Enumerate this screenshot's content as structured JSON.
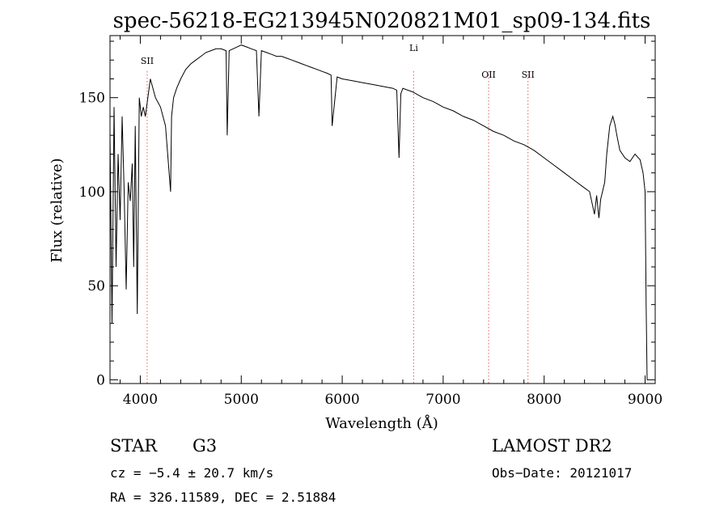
{
  "chart_data": {
    "type": "line",
    "title": "spec-56218-EG213945N020821M01_sp09-134.fits",
    "xlabel": "Wavelength (Å)",
    "ylabel": "Flux (relative)",
    "xlim": [
      3700,
      9100
    ],
    "ylim": [
      -2,
      183
    ],
    "xticks": [
      4000,
      5000,
      6000,
      7000,
      8000,
      9000
    ],
    "yticks": [
      0,
      50,
      100,
      150
    ],
    "grid": false,
    "series": [
      {
        "color": "#000000",
        "x": [
          3700,
          3720,
          3740,
          3760,
          3780,
          3800,
          3820,
          3840,
          3860,
          3880,
          3900,
          3920,
          3935,
          3950,
          3970,
          3990,
          4010,
          4030,
          4050,
          4080,
          4100,
          4150,
          4200,
          4250,
          4300,
          4310,
          4330,
          4360,
          4400,
          4450,
          4500,
          4550,
          4600,
          4650,
          4700,
          4750,
          4800,
          4850,
          4861,
          4880,
          4920,
          4960,
          5000,
          5050,
          5100,
          5150,
          5175,
          5200,
          5250,
          5300,
          5350,
          5400,
          5450,
          5500,
          5550,
          5600,
          5650,
          5700,
          5750,
          5800,
          5850,
          5890,
          5900,
          5950,
          6000,
          6100,
          6200,
          6300,
          6400,
          6500,
          6540,
          6563,
          6580,
          6600,
          6700,
          6800,
          6900,
          7000,
          7100,
          7200,
          7300,
          7400,
          7500,
          7600,
          7700,
          7800,
          7900,
          8000,
          8100,
          8200,
          8300,
          8400,
          8450,
          8498,
          8520,
          8542,
          8560,
          8600,
          8620,
          8650,
          8680,
          8700,
          8720,
          8750,
          8800,
          8850,
          8900,
          8950,
          8980,
          9000,
          9010,
          9020
        ],
        "y": [
          130,
          30,
          145,
          60,
          120,
          85,
          140,
          100,
          48,
          105,
          95,
          115,
          60,
          135,
          35,
          150,
          140,
          145,
          140,
          152,
          160,
          150,
          145,
          135,
          100,
          140,
          150,
          155,
          160,
          165,
          168,
          170,
          172,
          174,
          175,
          176,
          176,
          175,
          130,
          175,
          176,
          177,
          178,
          177,
          176,
          175,
          140,
          175,
          174,
          173,
          172,
          172,
          171,
          170,
          169,
          168,
          167,
          166,
          165,
          164,
          163,
          162,
          135,
          161,
          160,
          159,
          158,
          157,
          156,
          155,
          154,
          118,
          152,
          155,
          153,
          150,
          148,
          145,
          143,
          140,
          138,
          135,
          132,
          130,
          127,
          125,
          122,
          118,
          114,
          110,
          106,
          102,
          100,
          88,
          98,
          86,
          96,
          105,
          120,
          135,
          140,
          136,
          130,
          122,
          118,
          116,
          120,
          117,
          110,
          100,
          40,
          0
        ]
      }
    ],
    "line_markers": [
      {
        "label": "SII",
        "wavelength": 4068
      },
      {
        "label": "Li",
        "wavelength": 6708
      },
      {
        "label": "OII",
        "wavelength": 7450
      },
      {
        "label": "SII",
        "wavelength": 7840
      }
    ]
  },
  "info": {
    "object_type": "STAR",
    "subclass": "G3",
    "survey": "LAMOST DR2",
    "cz": "cz = −5.4 ± 20.7 km/s",
    "obs_date": "Obs−Date: 20121017",
    "coords": "RA = 326.11589, DEC =   2.51884"
  }
}
